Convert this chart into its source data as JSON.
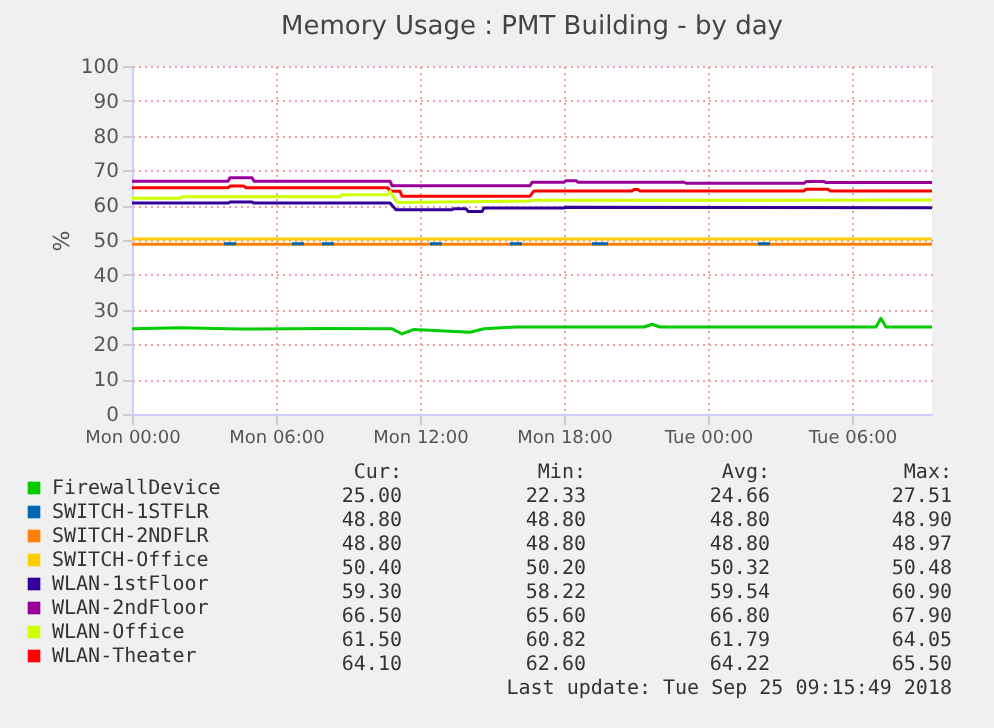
{
  "chart_data": {
    "type": "line",
    "title": "Memory Usage : PMT Building - by day",
    "ylabel": "%",
    "xlim": [
      "2018-09-24T00:00",
      "2018-09-25T09:20"
    ],
    "xticks": [
      {
        "value": "2018-09-24T00:00",
        "label": "Mon 00:00"
      },
      {
        "value": "2018-09-24T06:00",
        "label": "Mon 06:00"
      },
      {
        "value": "2018-09-24T12:00",
        "label": "Mon 12:00"
      },
      {
        "value": "2018-09-24T18:00",
        "label": "Mon 18:00"
      },
      {
        "value": "2018-09-25T00:00",
        "label": "Tue 00:00"
      },
      {
        "value": "2018-09-25T06:00",
        "label": "Tue 06:00"
      }
    ],
    "ylim": [
      0,
      100
    ],
    "yticks": [
      0,
      10,
      20,
      30,
      40,
      50,
      60,
      70,
      80,
      90,
      100
    ],
    "grid": true,
    "legend": "bottom",
    "line_style": "solid",
    "marker": "none",
    "series": [
      {
        "name": "FirewallDevice",
        "color": "#00cc00",
        "x": [
          "2018-09-24T00:00",
          "2018-09-24T02:00",
          "2018-09-24T04:30",
          "2018-09-24T08:00",
          "2018-09-24T10:50",
          "2018-09-24T11:15",
          "2018-09-24T11:45",
          "2018-09-24T14:05",
          "2018-09-24T14:40",
          "2018-09-24T16:00",
          "2018-09-24T21:20",
          "2018-09-24T21:40",
          "2018-09-24T22:00",
          "2018-09-25T07:00",
          "2018-09-25T07:12",
          "2018-09-25T07:25",
          "2018-09-25T09:20"
        ],
        "values": [
          24.5,
          24.8,
          24.4,
          24.6,
          24.5,
          23.0,
          24.3,
          23.5,
          24.5,
          25.0,
          25.0,
          25.8,
          25.0,
          25.0,
          27.5,
          25.0,
          25.0
        ]
      },
      {
        "name": "SWITCH-1STFLR",
        "color": "#0066b3",
        "x": [
          "2018-09-24T03:50",
          "2018-09-24T04:20",
          "2018-09-24T05:00",
          "2018-09-24T06:40",
          "2018-09-24T07:10",
          "2018-09-24T07:30",
          "2018-09-24T07:55",
          "2018-09-24T08:25",
          "2018-09-24T10:00",
          "2018-09-24T12:25",
          "2018-09-24T12:55",
          "2018-09-24T14:00",
          "2018-09-24T15:45",
          "2018-09-24T16:15",
          "2018-09-24T17:30",
          "2018-09-24T19:10",
          "2018-09-24T19:50",
          "2018-09-24T22:00",
          "2018-09-25T02:05",
          "2018-09-25T02:35"
        ],
        "values": [
          48.9,
          48.9,
          null,
          48.9,
          48.9,
          null,
          48.9,
          48.9,
          null,
          48.9,
          48.9,
          null,
          48.9,
          48.9,
          null,
          48.9,
          48.9,
          null,
          48.9,
          48.9
        ]
      },
      {
        "name": "SWITCH-2NDFLR",
        "color": "#ff8000",
        "x": [
          "2018-09-24T00:00",
          "2018-09-25T09:20"
        ],
        "values": [
          48.8,
          48.8
        ]
      },
      {
        "name": "SWITCH-Office",
        "color": "#ffcc00",
        "x": [
          "2018-09-24T00:00",
          "2018-09-25T09:20"
        ],
        "values": [
          50.3,
          50.3
        ]
      },
      {
        "name": "WLAN-1stFloor",
        "color": "#330099",
        "x": [
          "2018-09-24T00:00",
          "2018-09-24T04:00",
          "2018-09-24T04:05",
          "2018-09-24T05:00",
          "2018-09-24T05:05",
          "2018-09-24T10:45",
          "2018-09-24T11:00",
          "2018-09-24T13:20",
          "2018-09-24T13:25",
          "2018-09-24T13:55",
          "2018-09-24T14:00",
          "2018-09-24T14:35",
          "2018-09-24T14:40",
          "2018-09-24T18:00",
          "2018-09-24T18:05",
          "2018-09-25T09:20"
        ],
        "values": [
          60.6,
          60.6,
          60.9,
          60.9,
          60.6,
          60.6,
          58.7,
          58.7,
          59.0,
          59.0,
          58.2,
          58.2,
          59.2,
          59.2,
          59.4,
          59.3
        ]
      },
      {
        "name": "WLAN-2ndFloor",
        "color": "#990099",
        "x": [
          "2018-09-24T00:00",
          "2018-09-24T04:00",
          "2018-09-24T04:05",
          "2018-09-24T05:00",
          "2018-09-24T05:05",
          "2018-09-24T10:45",
          "2018-09-24T10:50",
          "2018-09-24T16:35",
          "2018-09-24T16:40",
          "2018-09-24T18:00",
          "2018-09-24T18:05",
          "2018-09-24T18:30",
          "2018-09-24T18:35",
          "2018-09-24T23:00",
          "2018-09-24T23:05",
          "2018-09-25T04:00",
          "2018-09-25T04:05",
          "2018-09-25T04:50",
          "2018-09-25T04:55",
          "2018-09-25T09:20"
        ],
        "values": [
          66.9,
          66.9,
          67.9,
          67.9,
          66.9,
          66.9,
          65.6,
          65.6,
          66.6,
          66.6,
          67.0,
          67.0,
          66.6,
          66.6,
          66.3,
          66.3,
          66.8,
          66.8,
          66.5,
          66.5
        ]
      },
      {
        "name": "WLAN-Office",
        "color": "#ccff00",
        "x": [
          "2018-09-24T00:00",
          "2018-09-24T02:00",
          "2018-09-24T02:05",
          "2018-09-24T08:40",
          "2018-09-24T08:45",
          "2018-09-24T10:40",
          "2018-09-24T10:45",
          "2018-09-24T11:00",
          "2018-09-24T11:05",
          "2018-09-24T16:35",
          "2018-09-24T16:40",
          "2018-09-25T09:20"
        ],
        "values": [
          62.0,
          62.0,
          62.4,
          62.4,
          63.0,
          63.0,
          64.0,
          61.2,
          60.8,
          61.2,
          61.4,
          61.5
        ]
      },
      {
        "name": "WLAN-Theater",
        "color": "#ff0000",
        "x": [
          "2018-09-24T00:00",
          "2018-09-24T04:00",
          "2018-09-24T04:05",
          "2018-09-24T04:40",
          "2018-09-24T04:45",
          "2018-09-24T10:40",
          "2018-09-24T10:45",
          "2018-09-24T11:10",
          "2018-09-24T11:15",
          "2018-09-24T16:35",
          "2018-09-24T16:45",
          "2018-09-24T20:50",
          "2018-09-24T20:55",
          "2018-09-24T21:05",
          "2018-09-24T21:10",
          "2018-09-25T04:00",
          "2018-09-25T04:05",
          "2018-09-25T05:00",
          "2018-09-25T05:05",
          "2018-09-25T09:20"
        ],
        "values": [
          65.0,
          65.0,
          65.5,
          65.5,
          65.0,
          65.0,
          64.0,
          64.0,
          62.6,
          62.6,
          64.1,
          64.1,
          64.5,
          64.5,
          64.1,
          64.1,
          64.6,
          64.6,
          64.1,
          64.1
        ]
      }
    ],
    "annotations": [
      "Cur:",
      "Min:",
      "Avg:",
      "Max:",
      "25.00",
      "22.33",
      "24.66",
      "27.51",
      "48.80",
      "48.80",
      "48.80",
      "48.90",
      "48.80",
      "48.80",
      "48.80",
      "48.97",
      "50.40",
      "50.20",
      "50.32",
      "50.48",
      "59.30",
      "58.22",
      "59.54",
      "60.90",
      "66.50",
      "65.60",
      "66.80",
      "67.90",
      "61.50",
      "60.82",
      "61.79",
      "64.05",
      "64.10",
      "62.60",
      "64.22",
      "65.50",
      "Last update: Tue Sep 25 09:15:49 2018"
    ]
  }
}
